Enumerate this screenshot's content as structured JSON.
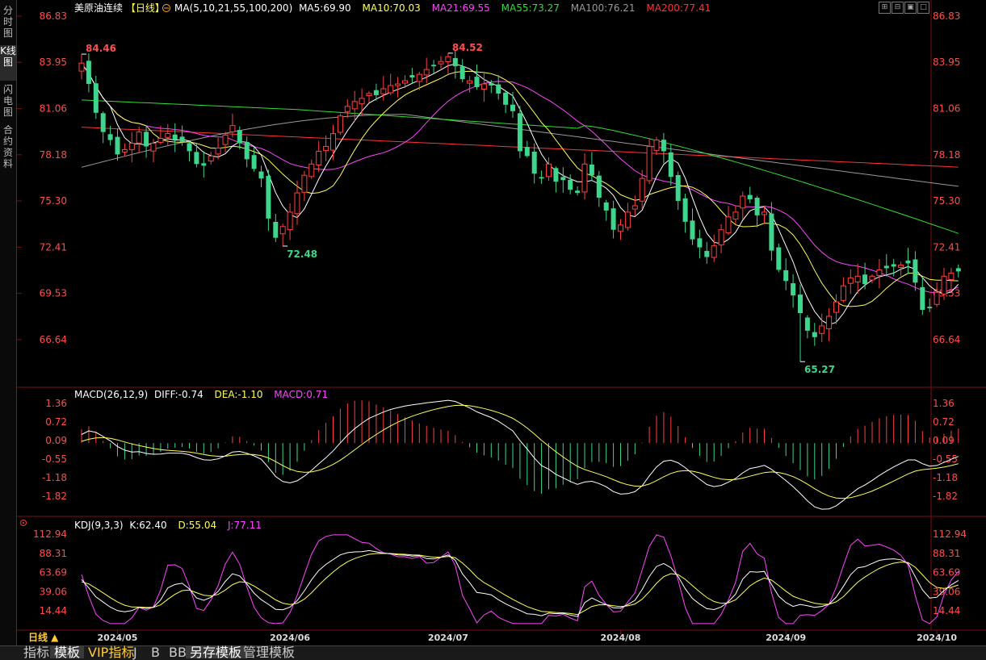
{
  "sidebar": {
    "tabs": [
      {
        "label": "分时图",
        "active": false
      },
      {
        "label": "K线图",
        "active": true
      },
      {
        "label": "闪电图",
        "active": false
      },
      {
        "label": "合约资料",
        "active": false
      }
    ]
  },
  "header": {
    "name": "美原油连续",
    "period": "【日线】",
    "ma_params": "MA(5,10,21,55,100,200)",
    "ma5": "MA5:69.90",
    "ma10": "MA10:70.03",
    "ma21": "MA21:69.55",
    "ma55": "MA55:73.27",
    "ma100": "MA100:76.21",
    "ma200": "MA200:77.41"
  },
  "macd_header": {
    "params": "MACD(26,12,9)",
    "diff": "DIFF:-0.74",
    "dea": "DEA:-1.10",
    "macd": "MACD:0.71"
  },
  "kdj_header": {
    "params": "KDJ(9,3,3)",
    "k": "K:62.40",
    "d": "D:55.04",
    "j": "J:77.11"
  },
  "bottom": {
    "period_label": "日线 ▲",
    "tabs": [
      "指标",
      "模板",
      "VIP指标",
      "J",
      "B",
      "BB",
      "另存模板",
      "管理模板"
    ]
  },
  "colors": {
    "up": "#ff4040",
    "down": "#3dd68c",
    "ma5": "#ffffff",
    "ma10": "#ffff55",
    "ma21": "#ff44ff",
    "ma55": "#33dd33",
    "ma100": "#999999",
    "ma200": "#ff3333",
    "axis_text": "#ff4d4d"
  },
  "chart_data": {
    "type": "candlestick",
    "price_axis": {
      "ticks": [
        "86.83",
        "83.95",
        "81.06",
        "78.18",
        "75.30",
        "72.41",
        "69.53",
        "66.64"
      ],
      "range": [
        63.76,
        86.83
      ]
    },
    "macd_axis": {
      "ticks": [
        "1.36",
        "0.72",
        "0.09",
        "-0.55",
        "-1.18",
        "-1.82"
      ],
      "range": [
        -2.6,
        1.36
      ]
    },
    "kdj_axis": {
      "ticks": [
        "112.94",
        "88.31",
        "63.69",
        "39.06",
        "14.44"
      ],
      "range": [
        -5,
        112.94
      ]
    },
    "x_labels": [
      {
        "label": "2024/05",
        "index": 5
      },
      {
        "label": "2024/06",
        "index": 29
      },
      {
        "label": "2024/07",
        "index": 51
      },
      {
        "label": "2024/08",
        "index": 75
      },
      {
        "label": "2024/09",
        "index": 98
      },
      {
        "label": "2024/10",
        "index": 119
      }
    ],
    "annotations": [
      {
        "text": "84.46",
        "index": 0,
        "price": 84.46,
        "kind": "high"
      },
      {
        "text": "84.52",
        "index": 51,
        "price": 84.52,
        "kind": "high"
      },
      {
        "text": "72.48",
        "index": 28,
        "price": 72.48,
        "kind": "low"
      },
      {
        "text": "65.27",
        "index": 100,
        "price": 65.27,
        "kind": "low"
      }
    ],
    "closes": [
      83.9,
      82.6,
      80.8,
      79.6,
      79.1,
      78.2,
      78.5,
      78.9,
      79.6,
      78.7,
      78.9,
      79.2,
      79.5,
      79.1,
      79.0,
      78.4,
      77.6,
      77.5,
      78.1,
      78.6,
      79.4,
      80.0,
      78.9,
      77.9,
      77.3,
      76.7,
      74.2,
      73.0,
      73.7,
      74.6,
      75.8,
      76.9,
      77.6,
      78.4,
      78.7,
      79.5,
      80.6,
      81.2,
      81.5,
      81.7,
      82.0,
      81.9,
      82.3,
      82.5,
      82.6,
      82.8,
      83.0,
      83.2,
      83.5,
      83.7,
      84.0,
      84.3,
      83.7,
      82.9,
      82.8,
      82.4,
      82.6,
      82.5,
      82.0,
      81.3,
      80.9,
      78.4,
      78.1,
      77.0,
      76.7,
      77.6,
      76.5,
      76.6,
      76.0,
      75.8,
      77.6,
      76.9,
      75.5,
      74.7,
      73.5,
      73.8,
      74.6,
      75.0,
      76.7,
      78.7,
      79.1,
      78.4,
      76.8,
      75.3,
      74.0,
      72.9,
      72.4,
      71.8,
      72.5,
      73.5,
      74.3,
      74.6,
      75.6,
      75.4,
      74.4,
      74.6,
      72.2,
      71.0,
      70.3,
      69.4,
      68.3,
      67.2,
      66.8,
      67.5,
      68.1,
      69.0,
      70.0,
      70.5,
      70.6,
      70.1,
      70.6,
      71.0,
      71.1,
      71.2,
      71.3,
      71.4,
      70.2,
      68.5,
      68.6,
      69.6,
      70.6,
      70.8,
      70.9
    ]
  }
}
